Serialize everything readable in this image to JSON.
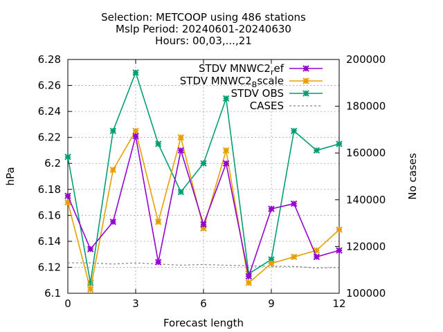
{
  "chart_data": {
    "type": "line",
    "title_lines": [
      "Selection: METCOOP using   486 stations",
      "Mslp   Period: 20240601-20240630",
      "Hours: 00,03,...,21"
    ],
    "xlabel": "Forecast length",
    "ylabel": "hPa",
    "y2label": "No cases",
    "xlim": [
      0,
      12
    ],
    "ylim": [
      6.1,
      6.28
    ],
    "y2lim": [
      100000,
      200000
    ],
    "xticks": [
      "0",
      "3",
      "6",
      "9",
      "12"
    ],
    "yticks": [
      "6.1",
      "6.12",
      "6.14",
      "6.16",
      "6.18",
      "6.2",
      "6.22",
      "6.24",
      "6.26",
      "6.28"
    ],
    "y2ticks": [
      "100000",
      "120000",
      "140000",
      "160000",
      "180000",
      "200000"
    ],
    "grid": true,
    "legend_position": "top-right",
    "x": [
      0,
      1,
      2,
      3,
      4,
      5,
      6,
      7,
      8,
      9,
      10,
      11,
      12
    ],
    "series": [
      {
        "name": "STDV MNWC2_ref",
        "name_base": "STDV MNWC2",
        "name_sub": "r",
        "name_after": "ef",
        "color": "#9400d3",
        "axis": "y",
        "values": [
          6.175,
          6.134,
          6.155,
          6.221,
          6.124,
          6.21,
          6.153,
          6.2,
          6.113,
          6.165,
          6.169,
          6.128,
          6.133
        ]
      },
      {
        "name": "STDV MNWC2_Bscale",
        "name_base": "STDV MNWC2",
        "name_sub": "B",
        "name_after": "scale",
        "color": "#e69f00",
        "axis": "y",
        "values": [
          6.17,
          6.103,
          6.195,
          6.225,
          6.155,
          6.22,
          6.15,
          6.21,
          6.108,
          6.123,
          6.128,
          6.133,
          6.149
        ]
      },
      {
        "name": "STDV OBS",
        "name_base": "STDV OBS",
        "name_sub": "",
        "name_after": "",
        "color": "#009e73",
        "axis": "y",
        "values": [
          6.205,
          6.108,
          6.225,
          6.27,
          6.215,
          6.178,
          6.2,
          6.25,
          6.115,
          6.126,
          6.225,
          6.21,
          6.215
        ]
      },
      {
        "name": "CASES",
        "name_base": "CASES",
        "name_sub": "",
        "name_after": "",
        "color": "#808080",
        "axis": "y2",
        "dashed": true,
        "values": [
          113000,
          113000,
          112500,
          113000,
          112500,
          112000,
          112300,
          112000,
          111800,
          111500,
          111500,
          110800,
          111000
        ]
      }
    ]
  }
}
